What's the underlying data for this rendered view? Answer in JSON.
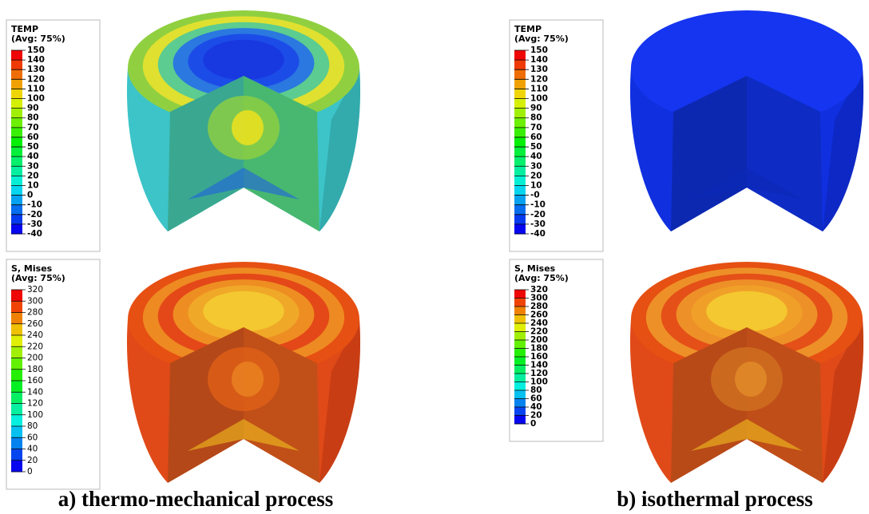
{
  "panels": [
    {
      "temp_legend": {
        "title": "TEMP",
        "subtitle": "(Avg: 75%)",
        "labels": [
          "150",
          "140",
          "130",
          "120",
          "110",
          "100",
          "90",
          "80",
          "70",
          "60",
          "50",
          "40",
          "30",
          "20",
          "10",
          "0",
          "-10",
          "-20",
          "-30",
          "-40"
        ]
      },
      "stress_legend": {
        "title": "S, Mises",
        "subtitle": "(Avg: 75%)",
        "labels": [
          "320",
          "300",
          "280",
          "260",
          "240",
          "220",
          "200",
          "180",
          "160",
          "140",
          "120",
          "100",
          "80",
          "60",
          "40",
          "20",
          "0"
        ]
      },
      "caption": "a) thermo-mechanical process"
    },
    {
      "temp_legend": {
        "title": "TEMP",
        "subtitle": "(Avg: 75%)",
        "labels": [
          "150",
          "140",
          "130",
          "120",
          "110",
          "100",
          "90",
          "80",
          "70",
          "60",
          "50",
          "40",
          "30",
          "20",
          "10",
          "-0",
          "-10",
          "-20",
          "-30",
          "-40"
        ]
      },
      "stress_legend": {
        "title": "S, Mises",
        "subtitle": "(Avg: 75%)",
        "labels": [
          "320",
          "300",
          "280",
          "260",
          "240",
          "220",
          "200",
          "180",
          "160",
          "140",
          "120",
          "100",
          "80",
          "60",
          "40",
          "20",
          "0"
        ]
      },
      "caption": "b) isothermal process"
    }
  ]
}
